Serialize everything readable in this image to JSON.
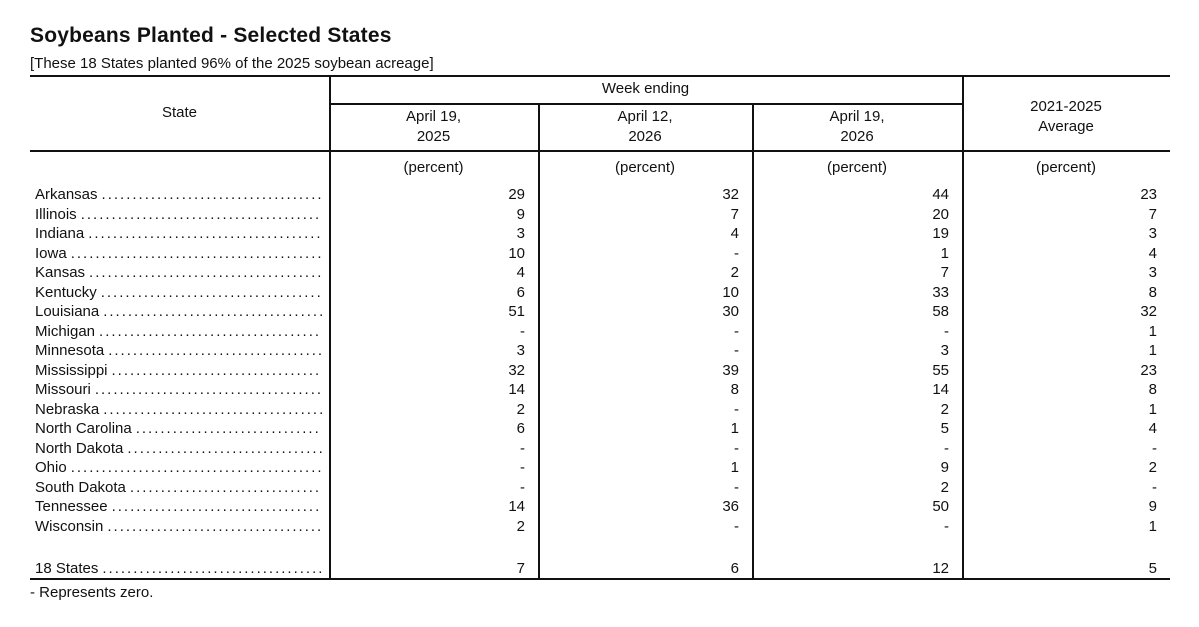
{
  "title": "Soybeans Planted - Selected States",
  "subtitle": "[These 18 States planted 96% of the 2025 soybean acreage]",
  "footnote": "- Represents zero.",
  "table": {
    "state_header": "State",
    "week_ending_header": "Week ending",
    "columns": [
      {
        "line1": "April 19,",
        "line2": "2025",
        "unit": "(percent)"
      },
      {
        "line1": "April 12,",
        "line2": "2026",
        "unit": "(percent)"
      },
      {
        "line1": "April 19,",
        "line2": "2026",
        "unit": "(percent)"
      }
    ],
    "average_header": {
      "line1": "2021-2025",
      "line2": "Average",
      "unit": "(percent)"
    },
    "zero_symbol": "-",
    "rows": [
      {
        "state": "Arkansas",
        "values": [
          "29",
          "32",
          "44",
          "23"
        ]
      },
      {
        "state": "Illinois",
        "values": [
          "9",
          "7",
          "20",
          "7"
        ]
      },
      {
        "state": "Indiana",
        "values": [
          "3",
          "4",
          "19",
          "3"
        ]
      },
      {
        "state": "Iowa",
        "values": [
          "10",
          "-",
          "1",
          "4"
        ]
      },
      {
        "state": "Kansas",
        "values": [
          "4",
          "2",
          "7",
          "3"
        ]
      },
      {
        "state": "Kentucky",
        "values": [
          "6",
          "10",
          "33",
          "8"
        ]
      },
      {
        "state": "Louisiana",
        "values": [
          "51",
          "30",
          "58",
          "32"
        ]
      },
      {
        "state": "Michigan",
        "values": [
          "-",
          "-",
          "-",
          "1"
        ]
      },
      {
        "state": "Minnesota",
        "values": [
          "3",
          "-",
          "3",
          "1"
        ]
      },
      {
        "state": "Mississippi",
        "values": [
          "32",
          "39",
          "55",
          "23"
        ]
      },
      {
        "state": "Missouri",
        "values": [
          "14",
          "8",
          "14",
          "8"
        ]
      },
      {
        "state": "Nebraska",
        "values": [
          "2",
          "-",
          "2",
          "1"
        ]
      },
      {
        "state": "North Carolina",
        "values": [
          "6",
          "1",
          "5",
          "4"
        ]
      },
      {
        "state": "North Dakota",
        "values": [
          "-",
          "-",
          "-",
          "-"
        ]
      },
      {
        "state": "Ohio",
        "values": [
          "-",
          "1",
          "9",
          "2"
        ]
      },
      {
        "state": "South Dakota",
        "values": [
          "-",
          "-",
          "2",
          "-"
        ]
      },
      {
        "state": "Tennessee",
        "values": [
          "14",
          "36",
          "50",
          "9"
        ]
      },
      {
        "state": "Wisconsin",
        "values": [
          "2",
          "-",
          "-",
          "1"
        ]
      }
    ],
    "total_row": {
      "state": "18 States",
      "values": [
        "7",
        "6",
        "12",
        "5"
      ]
    }
  }
}
